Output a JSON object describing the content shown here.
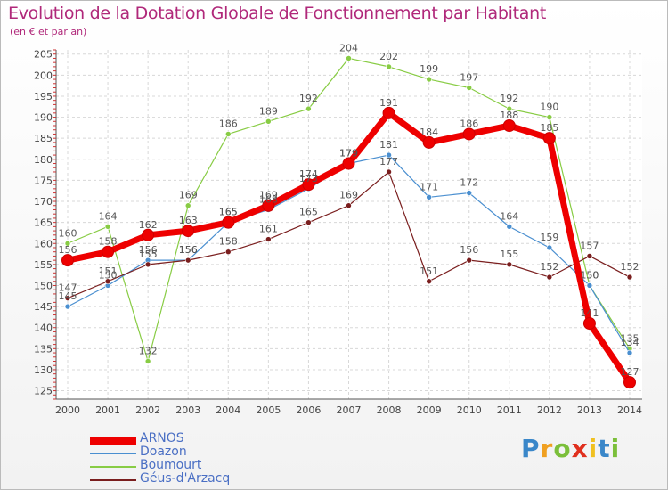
{
  "title": "Evolution de la Dotation Globale de Fonctionnement par Habitant",
  "subtitle": "(en € et par an)",
  "logo": {
    "chars": [
      "P",
      "r",
      "o",
      "x",
      "i",
      "t",
      "i"
    ],
    "colors": [
      "#3a87c9",
      "#f0a020",
      "#7bbf3a",
      "#e0301e",
      "#f0c020",
      "#3a87c9",
      "#7bbf3a"
    ]
  },
  "chart_data": {
    "type": "line",
    "title": "Evolution de la Dotation Globale de Fonctionnement par Habitant",
    "ylabel": "(en € et par an)",
    "xlabel": "",
    "x": [
      2000,
      2001,
      2002,
      2003,
      2004,
      2005,
      2006,
      2007,
      2008,
      2009,
      2010,
      2011,
      2012,
      2013,
      2014
    ],
    "ylim": [
      123,
      206
    ],
    "yticks": [
      125,
      130,
      135,
      140,
      145,
      150,
      155,
      160,
      165,
      170,
      175,
      180,
      185,
      190,
      195,
      200,
      205
    ],
    "grid": true,
    "legend_position": "bottom-left",
    "series": [
      {
        "name": "Boumourt",
        "color": "#88cc44",
        "values": [
          160,
          164,
          132,
          169,
          186,
          189,
          192,
          204,
          202,
          199,
          197,
          192,
          190,
          150,
          135
        ]
      },
      {
        "name": "Doazon",
        "color": "#4a8fd0",
        "values": [
          145,
          150,
          156,
          156,
          165,
          168,
          173,
          179,
          181,
          171,
          172,
          164,
          159,
          150,
          134
        ]
      },
      {
        "name": "Géus-d'Arzacq",
        "color": "#7a1e1e",
        "values": [
          147,
          151,
          155,
          156,
          158,
          161,
          165,
          169,
          177,
          151,
          156,
          155,
          152,
          157,
          152
        ]
      },
      {
        "name": "ARNOS",
        "color": "#ee0000",
        "values": [
          156,
          158,
          162,
          163,
          165,
          169,
          174,
          179,
          191,
          184,
          186,
          188,
          185,
          141,
          127
        ]
      }
    ],
    "legend_order": [
      "ARNOS",
      "Doazon",
      "Boumourt",
      "Géus-d'Arzacq"
    ]
  }
}
